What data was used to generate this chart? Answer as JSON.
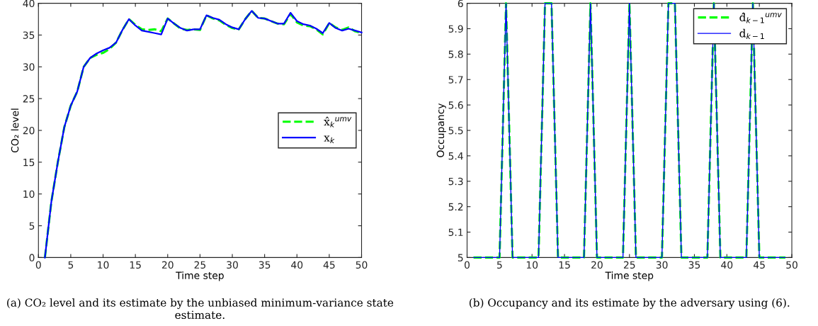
{
  "chart_data": [
    {
      "type": "line",
      "xlabel": "Time step",
      "ylabel": "CO₂ level",
      "xlim": [
        0,
        50
      ],
      "ylim": [
        0,
        40
      ],
      "xticks": [
        0,
        5,
        10,
        15,
        20,
        25,
        30,
        35,
        40,
        45,
        50
      ],
      "yticks": [
        0,
        5,
        10,
        15,
        20,
        25,
        30,
        35,
        40
      ],
      "grid": false,
      "legend": "right",
      "marker": "none",
      "x": [
        1,
        2,
        3,
        4,
        5,
        6,
        7,
        8,
        9,
        10,
        11,
        12,
        13,
        14,
        15,
        16,
        17,
        18,
        19,
        20,
        21,
        22,
        23,
        24,
        25,
        26,
        27,
        28,
        29,
        30,
        31,
        32,
        33,
        34,
        35,
        36,
        37,
        38,
        39,
        40,
        41,
        42,
        43,
        44,
        45,
        46,
        47,
        48,
        49,
        50
      ],
      "series": [
        {
          "name": "x̂$_{k}$$^{umv}$",
          "color": "#00ff00",
          "line_style": "dashed",
          "values": [
            0,
            8.8,
            15,
            20.5,
            23.9,
            26.1,
            30.0,
            31.4,
            31.9,
            32.2,
            32.8,
            33.8,
            35.8,
            37.5,
            36.6,
            35.9,
            35.8,
            35.9,
            35.6,
            37.6,
            36.8,
            36.0,
            35.8,
            35.9,
            35.8,
            38.1,
            37.6,
            37.3,
            36.6,
            36.1,
            35.9,
            37.5,
            38.8,
            37.7,
            37.6,
            37.2,
            36.8,
            36.7,
            38.3,
            37.0,
            36.5,
            36.4,
            35.9,
            35.1,
            36.9,
            36.2,
            35.8,
            36.2,
            35.6,
            35.3
          ]
        },
        {
          "name": "x$_{k}$",
          "color": "#0000ff",
          "line_style": "solid",
          "values": [
            0,
            8.8,
            15,
            20.5,
            23.9,
            26.1,
            30.0,
            31.4,
            32.1,
            32.6,
            33.0,
            33.8,
            35.8,
            37.5,
            36.5,
            35.7,
            35.5,
            35.3,
            35.1,
            37.6,
            36.8,
            36.1,
            35.7,
            35.9,
            35.9,
            38.1,
            37.7,
            37.4,
            36.7,
            36.2,
            35.9,
            37.5,
            38.8,
            37.7,
            37.6,
            37.2,
            36.8,
            36.8,
            38.5,
            37.2,
            36.7,
            36.5,
            36.0,
            35.3,
            36.9,
            36.1,
            35.7,
            36.0,
            35.7,
            35.4
          ]
        }
      ],
      "annotations": [
        "(a) CO₂ level and its estimate by the unbiased minimum-variance state estimate."
      ]
    },
    {
      "type": "line",
      "xlabel": "Time step",
      "ylabel": "Occupancy",
      "xlim": [
        0,
        50
      ],
      "ylim": [
        5,
        6
      ],
      "xticks": [
        0,
        5,
        10,
        15,
        20,
        25,
        30,
        35,
        40,
        45,
        50
      ],
      "yticks": [
        5,
        5.1,
        5.2,
        5.3,
        5.4,
        5.5,
        5.6,
        5.7,
        5.8,
        5.9,
        6
      ],
      "grid": false,
      "legend": "top right",
      "marker": "none",
      "x": [
        1,
        2,
        3,
        4,
        5,
        6,
        7,
        8,
        9,
        10,
        11,
        12,
        13,
        14,
        15,
        16,
        17,
        18,
        19,
        20,
        21,
        22,
        23,
        24,
        25,
        26,
        27,
        28,
        29,
        30,
        31,
        32,
        33,
        34,
        35,
        36,
        37,
        38,
        39,
        40,
        41,
        42,
        43,
        44,
        45,
        46,
        47,
        48,
        49
      ],
      "series": [
        {
          "name": "d̂$_{k−1}$$^{umv}$",
          "color": "#00ff00",
          "line_style": "dashed",
          "values": [
            5,
            5,
            5,
            5,
            5,
            6,
            5,
            5,
            5,
            5,
            5,
            6,
            6,
            5,
            5,
            5,
            5,
            5,
            6,
            5,
            5,
            5,
            5,
            5,
            6,
            5,
            5,
            5,
            5,
            5,
            6,
            6,
            5,
            5,
            5,
            5,
            5,
            6,
            5,
            5,
            5,
            5,
            5,
            6,
            5,
            5,
            5,
            5,
            5
          ]
        },
        {
          "name": "d$_{k−1}$",
          "color": "#0000ff",
          "line_style": "solid",
          "values": [
            5,
            5,
            5,
            5,
            5,
            6,
            5,
            5,
            5,
            5,
            5,
            6,
            6,
            5,
            5,
            5,
            5,
            5,
            6,
            5,
            5,
            5,
            5,
            5,
            6,
            5,
            5,
            5,
            5,
            5,
            6,
            6,
            5,
            5,
            5,
            5,
            5,
            6,
            5,
            5,
            5,
            5,
            5,
            6,
            5,
            5,
            5,
            5,
            5
          ]
        }
      ],
      "annotations": [
        "(b) Occupancy and its estimate by the adversary using (6)."
      ]
    }
  ]
}
